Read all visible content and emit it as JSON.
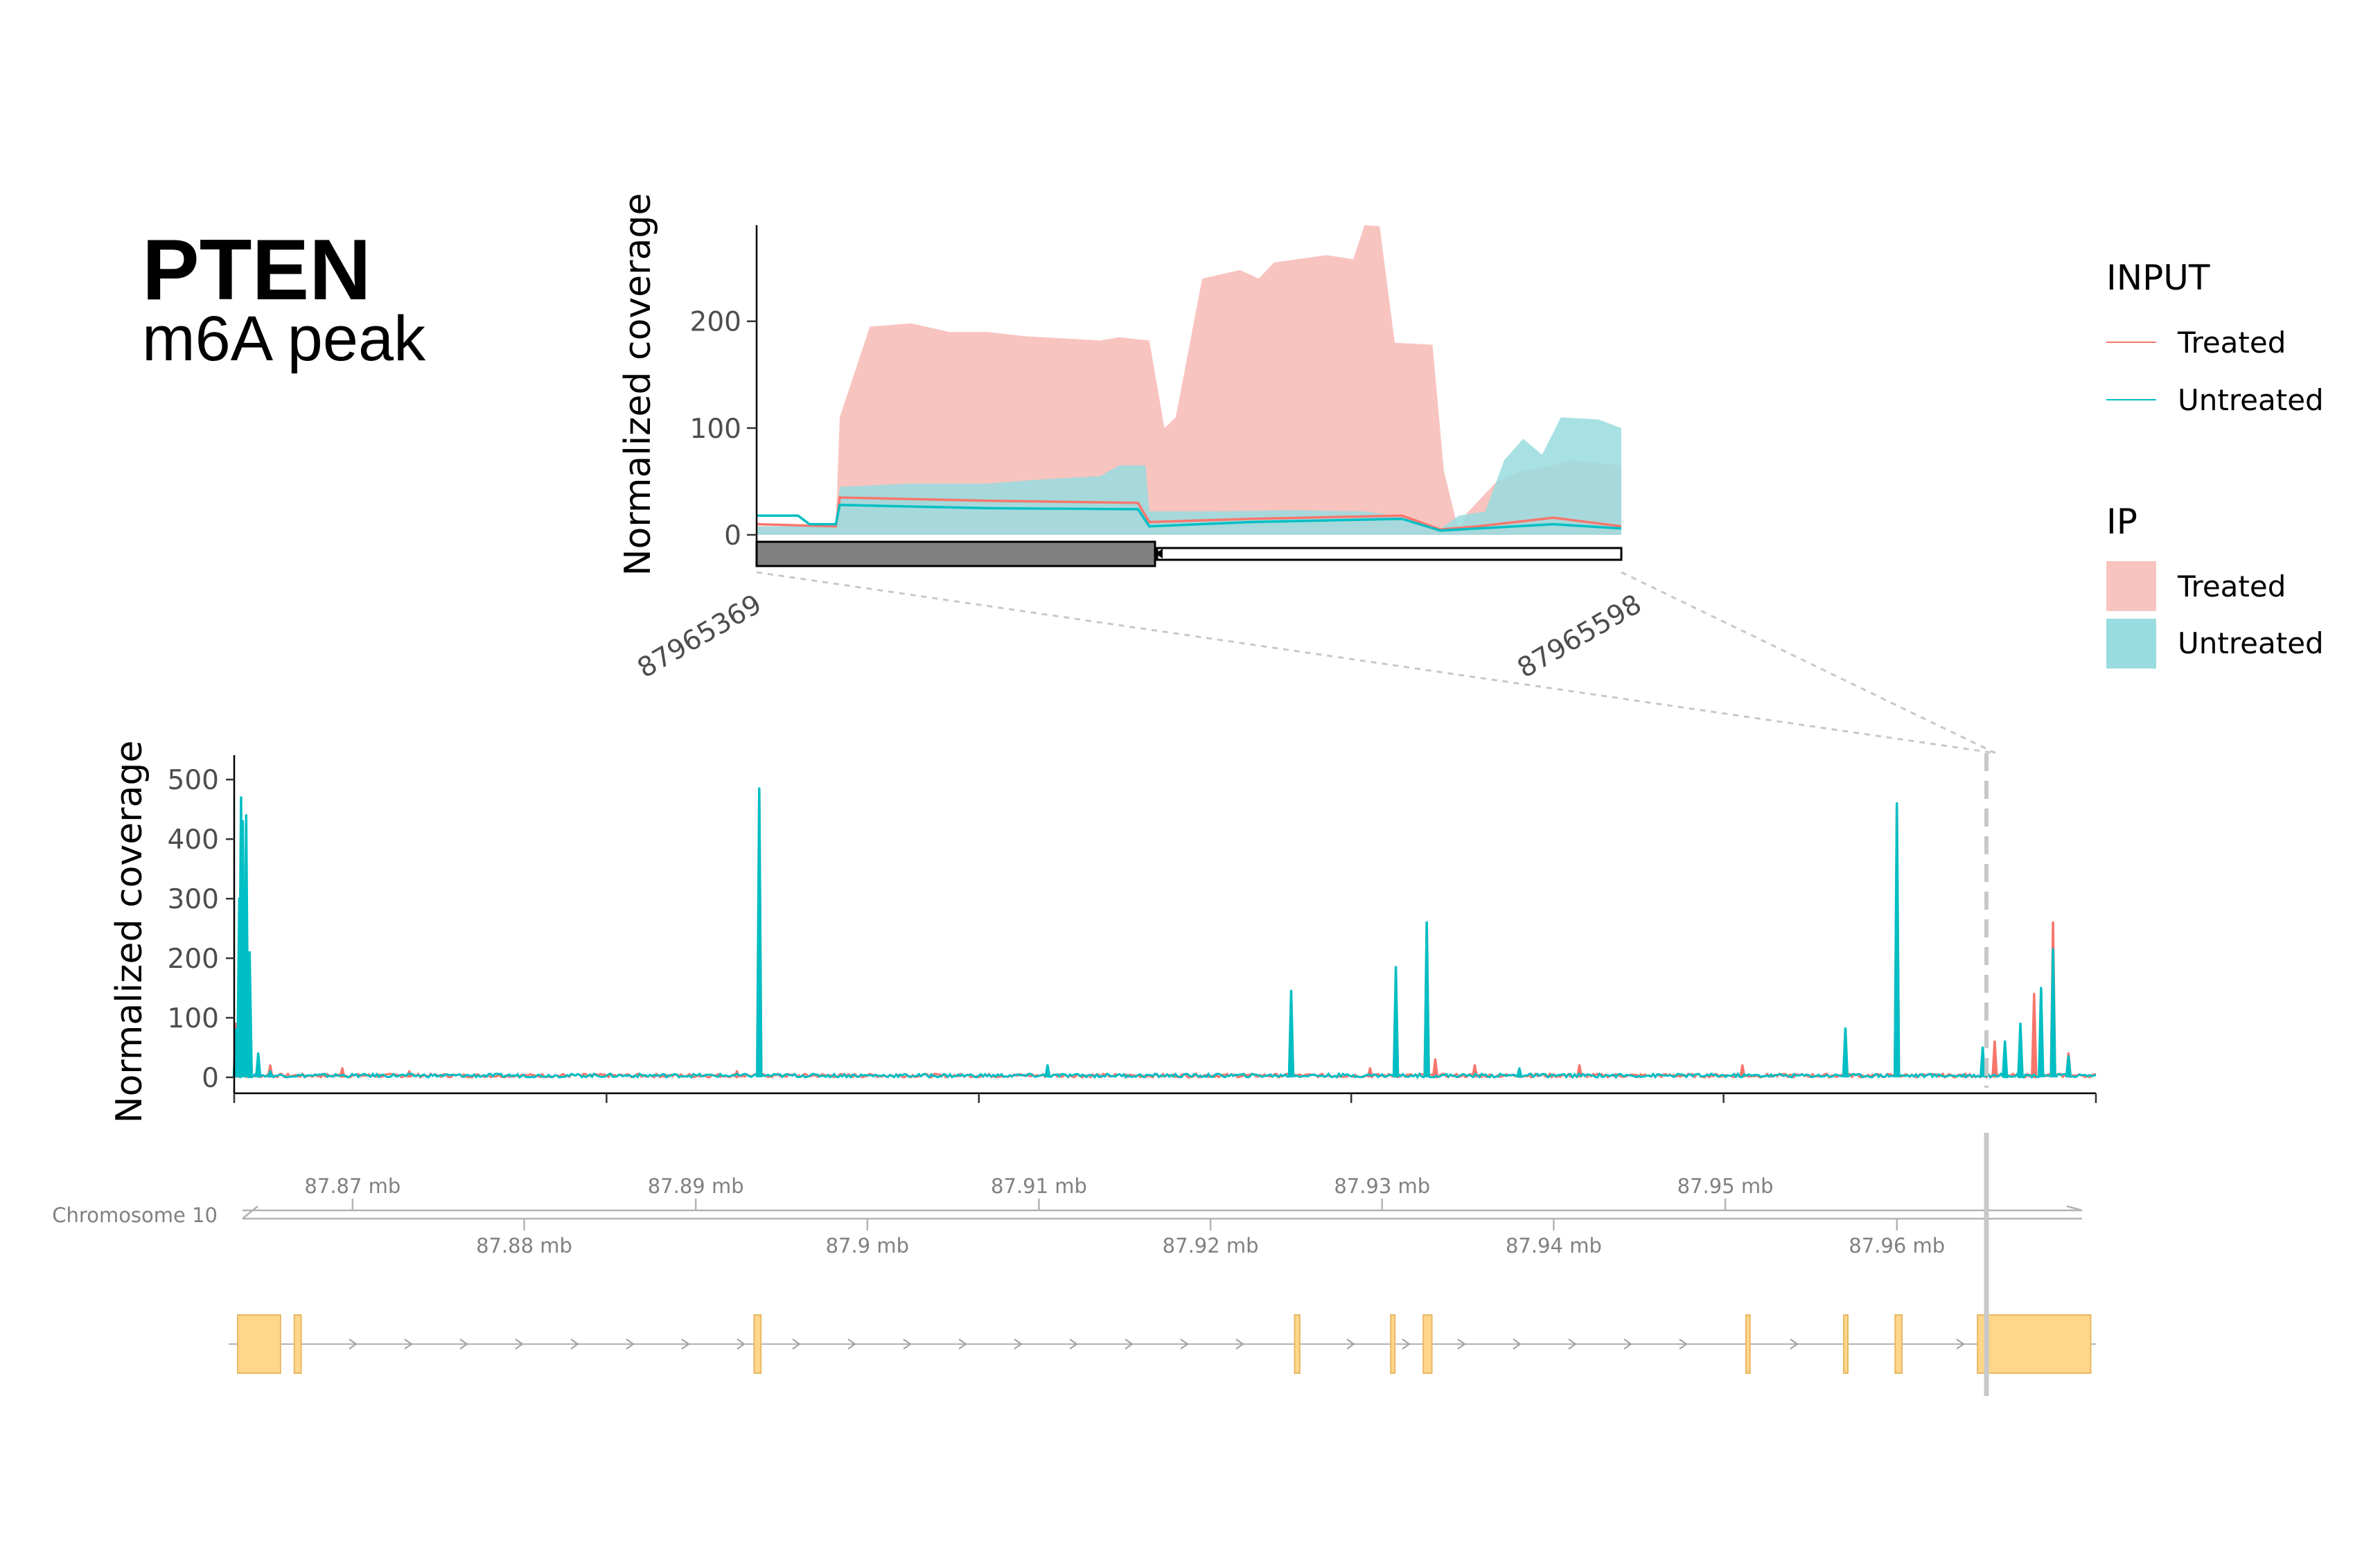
{
  "title": {
    "gene": "PTEN",
    "subtitle": "m6A peak"
  },
  "colors": {
    "treated": "#F8766D",
    "untreated": "#00BFC4",
    "treated_fill": "#F8C4C0",
    "untreated_fill": "#99DCDF",
    "exon": "#FFD68A",
    "exon_stroke": "#E8B866",
    "axis": "#000000",
    "muted": "#808080"
  },
  "legend": {
    "input_title": "INPUT",
    "input_items": [
      "Treated",
      "Untreated"
    ],
    "ip_title": "IP",
    "ip_items": [
      "Treated",
      "Untreated"
    ]
  },
  "track": {
    "chromosome_label": "Chromosome 10",
    "labels_top": [
      "87.87 mb",
      "87.89 mb",
      "87.91 mb",
      "87.93 mb",
      "87.95 mb"
    ],
    "labels_bottom": [
      "87.88 mb",
      "87.9 mb",
      "87.92 mb",
      "87.94 mb",
      "87.96 mb"
    ],
    "labels_top_mb": [
      87.87,
      87.89,
      87.91,
      87.93,
      87.95
    ],
    "labels_bottom_mb": [
      87.88,
      87.9,
      87.92,
      87.94,
      87.96
    ],
    "exons_mb": [
      [
        87.8633,
        87.8658
      ],
      [
        87.8666,
        87.867
      ],
      [
        87.8934,
        87.8938
      ],
      [
        87.9249,
        87.9252
      ],
      [
        87.9305,
        87.9307
      ],
      [
        87.9324,
        87.9329
      ],
      [
        87.9512,
        87.9514
      ],
      [
        87.9569,
        87.9571
      ],
      [
        87.9599,
        87.9603
      ],
      [
        87.9647,
        87.9713
      ]
    ],
    "region_mb": 87.96537
  },
  "chart_data": [
    {
      "type": "area",
      "panel": "zoom",
      "ylabel": "Normalized coverage",
      "x_range": [
        87965369,
        87965598
      ],
      "ylim": [
        0,
        290
      ],
      "yticks": [
        0,
        100,
        200
      ],
      "x_tick_labels": [
        "87965369",
        "87965598"
      ],
      "series": [
        {
          "name": "Treated",
          "group": "IP",
          "points": [
            [
              87965369,
              8
            ],
            [
              87965390,
              8
            ],
            [
              87965391,
              110
            ],
            [
              87965399,
              195
            ],
            [
              87965410,
              198
            ],
            [
              87965420,
              190
            ],
            [
              87965430,
              190
            ],
            [
              87965440,
              186
            ],
            [
              87965450,
              184
            ],
            [
              87965460,
              182
            ],
            [
              87965465,
              185
            ],
            [
              87965473,
              182
            ],
            [
              87965477,
              100
            ],
            [
              87965480,
              110
            ],
            [
              87965487,
              240
            ],
            [
              87965497,
              248
            ],
            [
              87965502,
              240
            ],
            [
              87965506,
              255
            ],
            [
              87965520,
              262
            ],
            [
              87965527,
              258
            ],
            [
              87965530,
              290
            ],
            [
              87965534,
              289
            ],
            [
              87965538,
              180
            ],
            [
              87965548,
              178
            ],
            [
              87965551,
              60
            ],
            [
              87965555,
              2
            ],
            [
              87965557,
              20
            ],
            [
              87965565,
              50
            ],
            [
              87965572,
              60
            ],
            [
              87965580,
              65
            ],
            [
              87965585,
              70
            ],
            [
              87965590,
              68
            ],
            [
              87965598,
              65
            ]
          ]
        },
        {
          "name": "Untreated",
          "group": "IP",
          "points": [
            [
              87965369,
              8
            ],
            [
              87965390,
              8
            ],
            [
              87965391,
              45
            ],
            [
              87965410,
              48
            ],
            [
              87965430,
              48
            ],
            [
              87965445,
              52
            ],
            [
              87965460,
              55
            ],
            [
              87965465,
              65
            ],
            [
              87965472,
              65
            ],
            [
              87965473,
              22
            ],
            [
              87965490,
              22
            ],
            [
              87965510,
              23
            ],
            [
              87965530,
              22
            ],
            [
              87965538,
              18
            ],
            [
              87965549,
              3
            ],
            [
              87965555,
              18
            ],
            [
              87965562,
              22
            ],
            [
              87965567,
              70
            ],
            [
              87965572,
              90
            ],
            [
              87965577,
              75
            ],
            [
              87965582,
              110
            ],
            [
              87965592,
              108
            ],
            [
              87965598,
              100
            ]
          ]
        }
      ],
      "input_series": [
        {
          "name": "Treated",
          "group": "INPUT",
          "points": [
            [
              87965369,
              10
            ],
            [
              87965390,
              8
            ],
            [
              87965391,
              35
            ],
            [
              87965430,
              32
            ],
            [
              87965470,
              30
            ],
            [
              87965473,
              12
            ],
            [
              87965500,
              15
            ],
            [
              87965540,
              18
            ],
            [
              87965550,
              5
            ],
            [
              87965560,
              8
            ],
            [
              87965580,
              16
            ],
            [
              87965598,
              8
            ]
          ]
        },
        {
          "name": "Untreated",
          "group": "INPUT",
          "points": [
            [
              87965369,
              18
            ],
            [
              87965380,
              18
            ],
            [
              87965383,
              10
            ],
            [
              87965390,
              10
            ],
            [
              87965391,
              28
            ],
            [
              87965430,
              25
            ],
            [
              87965470,
              24
            ],
            [
              87965473,
              8
            ],
            [
              87965500,
              12
            ],
            [
              87965540,
              15
            ],
            [
              87965550,
              4
            ],
            [
              87965560,
              6
            ],
            [
              87965580,
              10
            ],
            [
              87965598,
              6
            ]
          ]
        }
      ]
    },
    {
      "type": "line",
      "panel": "overview",
      "ylabel": "Normalized coverage",
      "x_range_mb": [
        87.8631,
        87.9716
      ],
      "ylim": [
        0,
        520
      ],
      "yticks": [
        0,
        100,
        200,
        300,
        400,
        500
      ],
      "series": [
        {
          "name": "Treated",
          "peaks": [
            [
              87.8632,
              90
            ],
            [
              87.8634,
              130
            ],
            [
              87.8636,
              160
            ],
            [
              87.8638,
              120
            ],
            [
              87.864,
              150
            ],
            [
              87.8652,
              20
            ],
            [
              87.8694,
              15
            ],
            [
              87.8733,
              10
            ],
            [
              87.8924,
              10
            ],
            [
              87.8937,
              480
            ],
            [
              87.9247,
              140
            ],
            [
              87.9293,
              15
            ],
            [
              87.9308,
              180
            ],
            [
              87.9326,
              260
            ],
            [
              87.9331,
              30
            ],
            [
              87.9354,
              20
            ],
            [
              87.9415,
              20
            ],
            [
              87.951,
              20
            ],
            [
              87.957,
              80
            ],
            [
              87.96,
              455
            ],
            [
              87.9657,
              60
            ],
            [
              87.9672,
              80
            ],
            [
              87.968,
              140
            ],
            [
              87.9691,
              260
            ],
            [
              87.97,
              40
            ]
          ]
        },
        {
          "name": "Untreated",
          "peaks": [
            [
              87.8632,
              80
            ],
            [
              87.8634,
              300
            ],
            [
              87.8635,
              470
            ],
            [
              87.8636,
              430
            ],
            [
              87.8638,
              440
            ],
            [
              87.864,
              210
            ],
            [
              87.8645,
              40
            ],
            [
              87.8652,
              10
            ],
            [
              87.8937,
              485
            ],
            [
              87.9105,
              20
            ],
            [
              87.9247,
              145
            ],
            [
              87.9308,
              185
            ],
            [
              87.9326,
              260
            ],
            [
              87.938,
              15
            ],
            [
              87.957,
              82
            ],
            [
              87.96,
              460
            ],
            [
              87.965,
              50
            ],
            [
              87.9663,
              60
            ],
            [
              87.9672,
              90
            ],
            [
              87.9684,
              150
            ],
            [
              87.9691,
              215
            ],
            [
              87.97,
              35
            ]
          ]
        }
      ]
    }
  ]
}
